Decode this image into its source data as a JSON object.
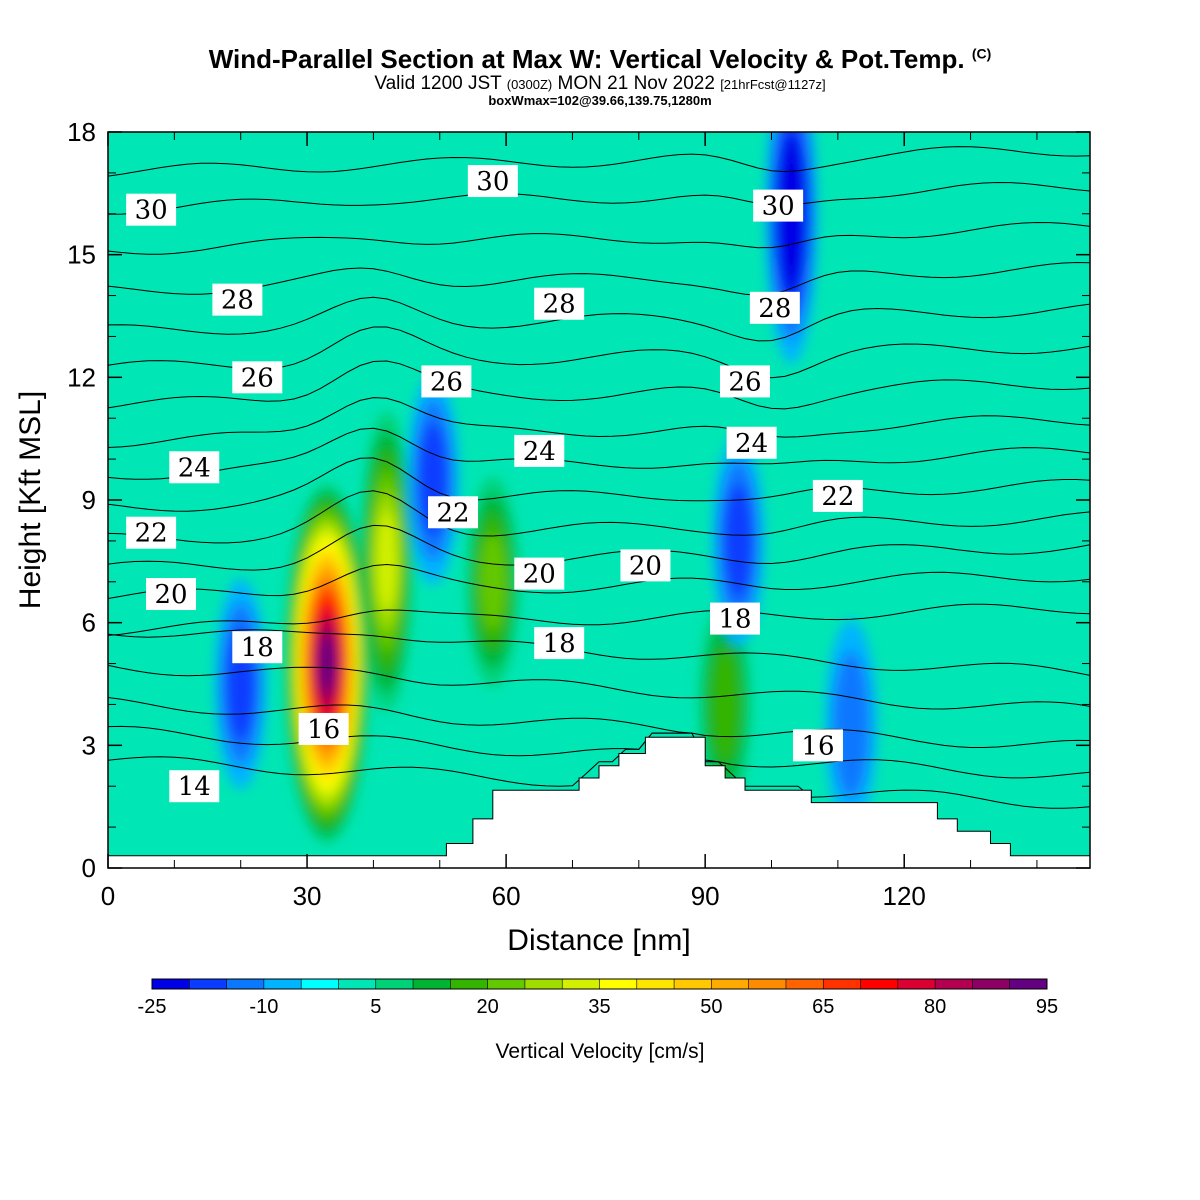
{
  "title": {
    "main": "Wind-Parallel Section at Max W: Vertical Velocity & Pot.Temp.",
    "main_suffix": "(C)",
    "valid": "Valid 1200 JST",
    "valid_utc": "(0300Z)",
    "valid_date": "MON 21 Nov 2022",
    "forecast": "[21hrFcst@1127z]",
    "box": "boxWmax=102@39.66,139.75,1280m"
  },
  "colorbar": {
    "title": "Vertical Velocity [cm/s]",
    "labels": [
      "-25",
      "-10",
      "5",
      "20",
      "35",
      "50",
      "65",
      "80",
      "95"
    ],
    "colors": [
      "#0000e6",
      "#0a3cff",
      "#0a78ff",
      "#00b4ff",
      "#00ffff",
      "#00e6b4",
      "#00d278",
      "#00b432",
      "#32b400",
      "#64c800",
      "#a0dc00",
      "#d2f000",
      "#ffff00",
      "#ffe600",
      "#ffc800",
      "#ffaa00",
      "#ff8c00",
      "#ff6400",
      "#ff3200",
      "#ff0000",
      "#dc0032",
      "#b40050",
      "#8c0064",
      "#640082"
    ]
  },
  "chart_data": {
    "type": "heatmap",
    "xlabel": "Distance [nm]",
    "ylabel": "Height [Kft MSL]",
    "xlim": [
      0,
      148
    ],
    "ylim": [
      0,
      18
    ],
    "x_ticks": [
      "0",
      "30",
      "60",
      "90",
      "120"
    ],
    "y_ticks": [
      "0",
      "3",
      "6",
      "9",
      "12",
      "15",
      "18"
    ],
    "terrain_profile": [
      [
        0,
        0.3
      ],
      [
        51,
        0.3
      ],
      [
        51,
        0.6
      ],
      [
        55,
        0.6
      ],
      [
        55,
        1.2
      ],
      [
        58,
        1.2
      ],
      [
        58,
        1.9
      ],
      [
        71,
        1.9
      ],
      [
        71,
        2.2
      ],
      [
        74,
        2.2
      ],
      [
        74,
        2.5
      ],
      [
        77,
        2.5
      ],
      [
        77,
        2.8
      ],
      [
        81,
        2.8
      ],
      [
        81,
        3.2
      ],
      [
        90,
        3.2
      ],
      [
        90,
        2.5
      ],
      [
        93,
        2.5
      ],
      [
        93,
        2.2
      ],
      [
        96,
        2.2
      ],
      [
        96,
        1.9
      ],
      [
        106,
        1.9
      ],
      [
        106,
        1.6
      ],
      [
        125,
        1.6
      ],
      [
        125,
        1.2
      ],
      [
        128,
        1.2
      ],
      [
        128,
        0.9
      ],
      [
        133,
        0.9
      ],
      [
        133,
        0.6
      ],
      [
        136,
        0.6
      ],
      [
        136,
        0.3
      ],
      [
        148,
        0.3
      ]
    ],
    "w_features": [
      {
        "x": 33,
        "y": 5,
        "value": 90
      },
      {
        "x": 42,
        "y": 7.5,
        "value": 30
      },
      {
        "x": 58,
        "y": 7,
        "value": 18
      },
      {
        "x": 103,
        "y": 16,
        "value": -25
      },
      {
        "x": 93,
        "y": 4,
        "value": 15
      },
      {
        "x": 20,
        "y": 4.5,
        "value": -15
      },
      {
        "x": 49,
        "y": 9.5,
        "value": -15
      },
      {
        "x": 95,
        "y": 8,
        "value": -15
      },
      {
        "x": 112,
        "y": 3.5,
        "value": -10
      }
    ],
    "theta_labels": [
      {
        "text": "30",
        "x": 6.5,
        "y": 16.1
      },
      {
        "text": "30",
        "x": 58,
        "y": 16.8
      },
      {
        "text": "30",
        "x": 101,
        "y": 16.2
      },
      {
        "text": "28",
        "x": 19.5,
        "y": 13.9
      },
      {
        "text": "28",
        "x": 68,
        "y": 13.8
      },
      {
        "text": "28",
        "x": 100.5,
        "y": 13.7
      },
      {
        "text": "26",
        "x": 22.5,
        "y": 12.0
      },
      {
        "text": "26",
        "x": 51,
        "y": 11.9
      },
      {
        "text": "26",
        "x": 96,
        "y": 11.9
      },
      {
        "text": "24",
        "x": 13,
        "y": 9.8
      },
      {
        "text": "24",
        "x": 65,
        "y": 10.2
      },
      {
        "text": "24",
        "x": 97,
        "y": 10.4
      },
      {
        "text": "22",
        "x": 6.5,
        "y": 8.2
      },
      {
        "text": "22",
        "x": 52,
        "y": 8.7
      },
      {
        "text": "22",
        "x": 110,
        "y": 9.1
      },
      {
        "text": "20",
        "x": 9.5,
        "y": 6.7
      },
      {
        "text": "20",
        "x": 65,
        "y": 7.2
      },
      {
        "text": "20",
        "x": 81,
        "y": 7.4
      },
      {
        "text": "18",
        "x": 22.5,
        "y": 5.4
      },
      {
        "text": "18",
        "x": 68,
        "y": 5.5
      },
      {
        "text": "18",
        "x": 94.5,
        "y": 6.1
      },
      {
        "text": "16",
        "x": 32.5,
        "y": 3.4
      },
      {
        "text": "16",
        "x": 107,
        "y": 3.0
      },
      {
        "text": "14",
        "x": 13,
        "y": 2.0
      }
    ],
    "theta_isentropes": [
      {
        "level": 14,
        "base_y": 2.1
      },
      {
        "level": 15,
        "base_y": 2.8
      },
      {
        "level": 16,
        "base_y": 3.5
      },
      {
        "level": 17,
        "base_y": 4.4
      },
      {
        "level": 18,
        "base_y": 5.3
      },
      {
        "level": 19,
        "base_y": 6.1
      },
      {
        "level": 20,
        "base_y": 6.9
      },
      {
        "level": 21,
        "base_y": 7.6
      },
      {
        "level": 22,
        "base_y": 8.3
      },
      {
        "level": 23,
        "base_y": 9.1
      },
      {
        "level": 24,
        "base_y": 9.9
      },
      {
        "level": 25,
        "base_y": 10.7
      },
      {
        "level": 26,
        "base_y": 11.6
      },
      {
        "level": 27,
        "base_y": 12.5
      },
      {
        "level": 28,
        "base_y": 13.4
      },
      {
        "level": 29,
        "base_y": 14.4
      },
      {
        "level": 30,
        "base_y": 15.4
      },
      {
        "level": 31,
        "base_y": 16.4
      },
      {
        "level": 32,
        "base_y": 17.3
      }
    ]
  }
}
